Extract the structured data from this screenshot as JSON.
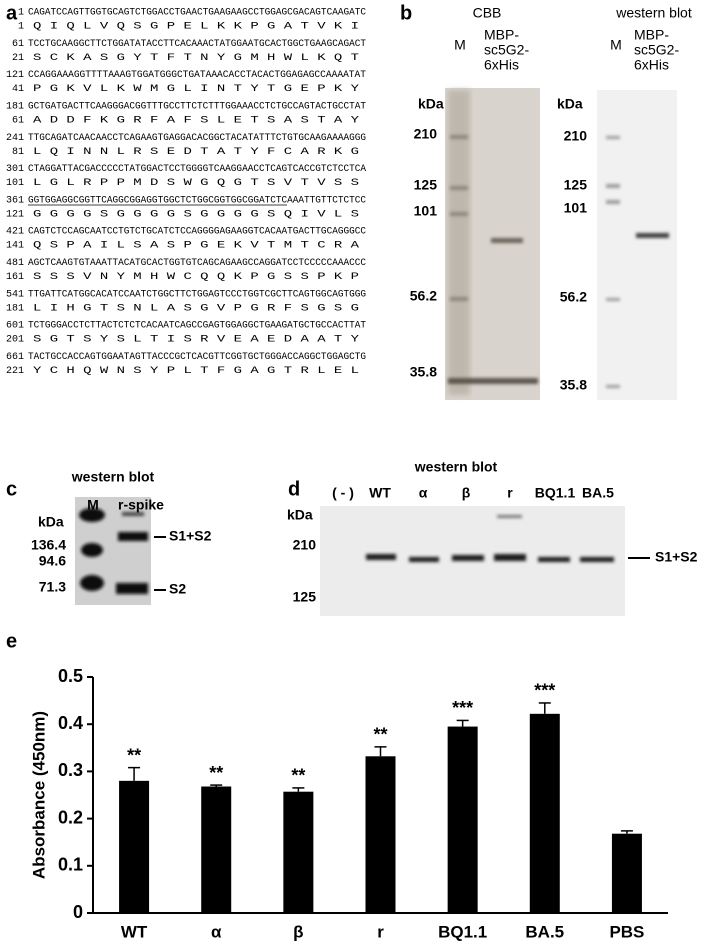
{
  "panel_a": {
    "label": "a",
    "rows": [
      {
        "nt_start": 1,
        "nt": "CAGATCCAGTTGGTGCAGTCTGGACCTGAACTGAAGAAGCCTGGAGCGACAGTCAAGATC",
        "aa_start": 1,
        "aa": "Q I Q L V Q S G P E L K K P G A T V K I"
      },
      {
        "nt_start": 61,
        "nt": "TCCTGCAAGGCTTCTGGATATACCTTCACAAACTATGGAATGCACTGGCTGAAGCAGACT",
        "aa_start": 21,
        "aa": "S C K A S G Y T F T N Y G M H W L K Q T"
      },
      {
        "nt_start": 121,
        "nt": "CCAGGAAAGGTTTTAAAGTGGATGGGCTGATAAACACCTACACTGGAGAGCCAAAATAT",
        "aa_start": 41,
        "aa": "P G K V L K W M G L I N T Y T G E P K Y"
      },
      {
        "nt_start": 181,
        "nt": "GCTGATGACTTCAAGGGACGGTTTGCCTTCTCTTTGGAAACCTCTGCCAGTACTGCCTAT",
        "aa_start": 61,
        "aa": "A D D F K G R F A F S L E T S A S T A Y"
      },
      {
        "nt_start": 241,
        "nt": "TTGCAGATCAACAACCTCAGAAGTGAGGACACGGCTACATATTTCTGTGCAAGAAAAGGG",
        "aa_start": 81,
        "aa": "L Q I N N L R S E D T A T Y F C A R K G"
      },
      {
        "nt_start": 301,
        "nt": "CTAGGATTACGACCCCCTATGGACTCCTGGGGTCAAGGAACCTCAGTCACCGTCTCCTCA",
        "aa_start": 101,
        "aa": "L G L R P P M D S W G Q G T S V T V S S"
      },
      {
        "nt_start": 361,
        "nt": "GGTGGAGGCGGTTCAGGCGGAGGTGGCTCTGGCGGTGGCGGATCTCAAATTGTTCTCTCC",
        "aa_start": 121,
        "aa": "G G G G S G G G G S G G G G S Q I V L S"
      },
      {
        "nt_start": 421,
        "nt": "CAGTCTCCAGCAATCCTGTCTGCATCTCCAGGGGAGAAGGTCACAATGACTTGCAGGGCC",
        "aa_start": 141,
        "aa": "Q S P A I L S A S P G E K V T M T C R A"
      },
      {
        "nt_start": 481,
        "nt": "AGCTCAAGTGTAAATTACATGCACTGGTGTCAGCAGAAGCCAGGATCCTCCCCCAAACCC",
        "aa_start": 161,
        "aa": "S S S V N Y M H W C Q Q K P G S S P K P"
      },
      {
        "nt_start": 541,
        "nt": "TTGATTCATGGCACATCCAATCTGGCTTCTGGAGTCCCTGGTCGCTTCAGTGGCAGTGGG",
        "aa_start": 181,
        "aa": "L I H G T S N L A S G V P G R F S G S G"
      },
      {
        "nt_start": 601,
        "nt": "TCTGGGACCTCTTACTCTCTCACAATCAGCCGAGTGGAGGCTGAAGATGCTGCCACTTAT",
        "aa_start": 201,
        "aa": "S G T S Y S L T I S R V E A E D A A T Y"
      },
      {
        "nt_start": 661,
        "nt": "TACTGCCACCAGTGGAATAGTTACCCGCTCACGTTCGGTGCTGGGACCAGGCTGGAGCTG",
        "aa_start": 221,
        "aa": "Y C H Q W N S Y P L T F G A G T R L E L"
      }
    ]
  },
  "panel_b": {
    "label": "b",
    "cbb": {
      "title": "CBB",
      "lane_m": "M",
      "lane_sample": [
        "MBP-",
        "sc5G2-",
        "6xHis"
      ],
      "unit": "kDa",
      "markers": [
        210,
        125,
        101,
        56.2,
        35.8
      ]
    },
    "western": {
      "title": "western blot",
      "lane_m": "M",
      "lane_sample": [
        "MBP-",
        "sc5G2-",
        "6xHis"
      ],
      "unit": "kDa",
      "markers": [
        210,
        125,
        101,
        56.2,
        35.8
      ]
    }
  },
  "panel_c": {
    "label": "c",
    "title": "western blot",
    "lanes": [
      "M",
      "r-spike"
    ],
    "unit": "kDa",
    "markers": [
      136.4,
      94.6,
      71.3
    ],
    "bands": [
      "S1+S2",
      "S2"
    ]
  },
  "panel_d": {
    "label": "d",
    "title": "western blot",
    "lanes": [
      "( - )",
      "WT",
      "α",
      "β",
      "r",
      "BQ1.1",
      "BA.5"
    ],
    "unit": "kDa",
    "markers": [
      210,
      125
    ],
    "band": "S1+S2"
  },
  "chart_data": {
    "type": "bar",
    "label": "e",
    "y_label": "Absorbance (450nm)",
    "categories": [
      "WT",
      "α",
      "β",
      "r",
      "BQ1.1",
      "BA.5",
      "PBS"
    ],
    "values": [
      0.28,
      0.268,
      0.257,
      0.332,
      0.395,
      0.422,
      0.168
    ],
    "errors": [
      0.028,
      0.003,
      0.008,
      0.02,
      0.013,
      0.023,
      0.006
    ],
    "annotations": [
      "**",
      "**",
      "**",
      "**",
      "***",
      "***",
      null
    ],
    "color": "#000000",
    "ylim": [
      0,
      0.5
    ],
    "yticks": [
      0,
      0.1,
      0.2,
      0.3,
      0.4,
      0.5
    ]
  }
}
